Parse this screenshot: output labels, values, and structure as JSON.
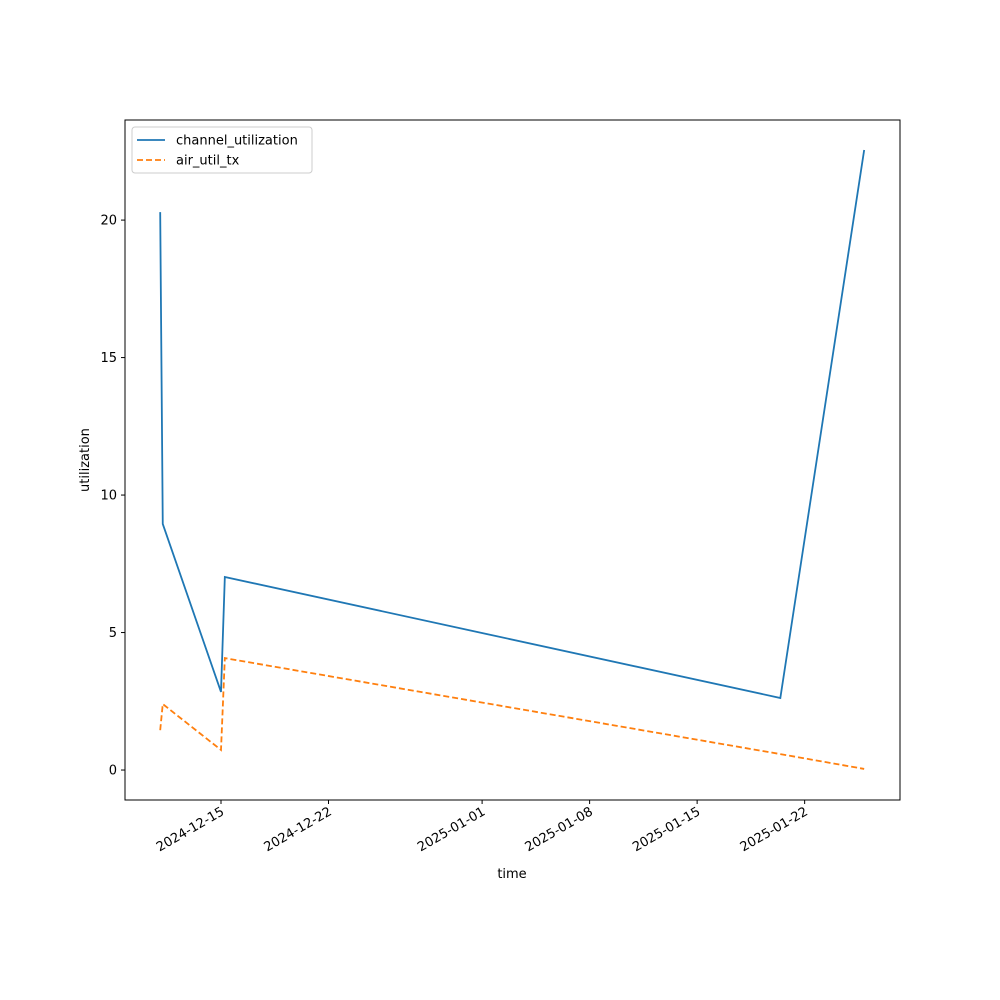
{
  "chart_data": {
    "type": "line",
    "x": [
      "2024-12-11T01:00",
      "2024-12-11T05:00",
      "2024-12-15T00:00",
      "2024-12-15T06:00",
      "2025-01-20T10:00",
      "2025-01-25T21:00"
    ],
    "series": [
      {
        "name": "channel_utilization",
        "color": "#1f77b4",
        "dash": "solid",
        "values": [
          20.29,
          8.95,
          2.84,
          7.02,
          2.62,
          22.55
        ]
      },
      {
        "name": "air_util_tx",
        "color": "#ff7f0e",
        "dash": "dashed",
        "values": [
          1.45,
          2.4,
          0.73,
          4.07,
          0.58,
          0.04
        ]
      }
    ],
    "xlabel": "time",
    "ylabel": "utilization",
    "xlim": [
      "2024-12-08T18:00",
      "2025-01-28T05:00"
    ],
    "xticks": [
      "2024-12-15",
      "2024-12-22",
      "2025-01-01",
      "2025-01-08",
      "2025-01-15",
      "2025-01-22"
    ],
    "ylim": [
      -1.09,
      23.64
    ],
    "yticks": [
      0,
      5,
      10,
      15,
      20
    ],
    "legend": "upper left"
  }
}
